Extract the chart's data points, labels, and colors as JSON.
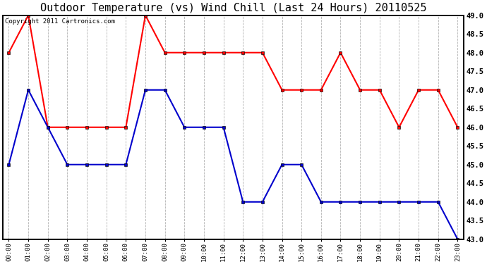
{
  "title": "Outdoor Temperature (vs) Wind Chill (Last 24 Hours) 20110525",
  "copyright_text": "Copyright 2011 Cartronics.com",
  "hours": [
    "00:00",
    "01:00",
    "02:00",
    "03:00",
    "04:00",
    "05:00",
    "06:00",
    "07:00",
    "08:00",
    "09:00",
    "10:00",
    "11:00",
    "12:00",
    "13:00",
    "14:00",
    "15:00",
    "16:00",
    "17:00",
    "18:00",
    "19:00",
    "20:00",
    "21:00",
    "22:00",
    "23:00"
  ],
  "temp": [
    48.0,
    49.0,
    46.0,
    46.0,
    46.0,
    46.0,
    46.0,
    49.0,
    48.0,
    48.0,
    48.0,
    48.0,
    48.0,
    48.0,
    47.0,
    47.0,
    47.0,
    48.0,
    47.0,
    47.0,
    46.0,
    47.0,
    47.0,
    46.0
  ],
  "windchill": [
    45.0,
    47.0,
    46.0,
    45.0,
    45.0,
    45.0,
    45.0,
    47.0,
    47.0,
    46.0,
    46.0,
    46.0,
    44.0,
    44.0,
    45.0,
    45.0,
    44.0,
    44.0,
    44.0,
    44.0,
    44.0,
    44.0,
    44.0,
    43.0
  ],
  "temp_color": "#ff0000",
  "windchill_color": "#0000cc",
  "ylim_min": 43.0,
  "ylim_max": 49.0,
  "ytick_step": 0.5,
  "bg_color": "#ffffff",
  "plot_bg_color": "#ffffff",
  "grid_color": "#aaaaaa",
  "title_fontsize": 11,
  "copyright_fontsize": 6.5
}
